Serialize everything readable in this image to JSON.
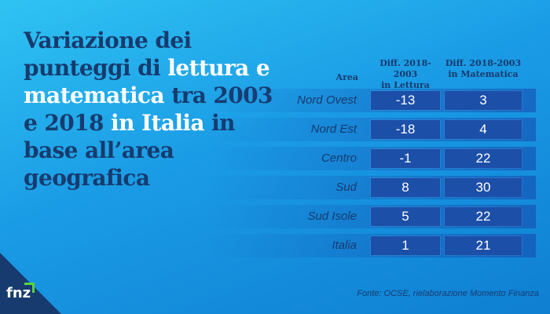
{
  "title": {
    "part1": "Variazione dei punteggi di ",
    "part2": "lettura e matematica",
    "part3": " tra 2003 e 2018 ",
    "part4": "in Italia",
    "part5": " in base all’area geografica"
  },
  "columns": {
    "area": "Area",
    "lettura": [
      "Diff. 2018-2003",
      "in Lettura"
    ],
    "matematica": [
      "Diff. 2018-2003",
      "in Matematica"
    ]
  },
  "chart_data": {
    "type": "table",
    "title": "Variazione dei punteggi di lettura e matematica tra 2003 e 2018 in Italia in base all’area geografica",
    "columns": [
      "Area",
      "Diff. 2018-2003 in Lettura",
      "Diff. 2018-2003 in Matematica"
    ],
    "rows": [
      {
        "area": "Nord Ovest",
        "lettura": "-13",
        "matematica": "3"
      },
      {
        "area": "Nord Est",
        "lettura": "-18",
        "matematica": "4"
      },
      {
        "area": "Centro",
        "lettura": "-1",
        "matematica": "22"
      },
      {
        "area": "Sud",
        "lettura": "8",
        "matematica": "30"
      },
      {
        "area": "Sud Isole",
        "lettura": "5",
        "matematica": "22"
      },
      {
        "area": "Italia",
        "lettura": "1",
        "matematica": "21"
      }
    ]
  },
  "logo": "fnz",
  "source": "Fonte: OCSE, rielaborazione Momento Finanza",
  "colors": {
    "title_dark": "#173b6e",
    "title_highlight": "#ffffff",
    "cell_bg": "#1c4fa8",
    "logo_arrow": "#5bd33c"
  }
}
